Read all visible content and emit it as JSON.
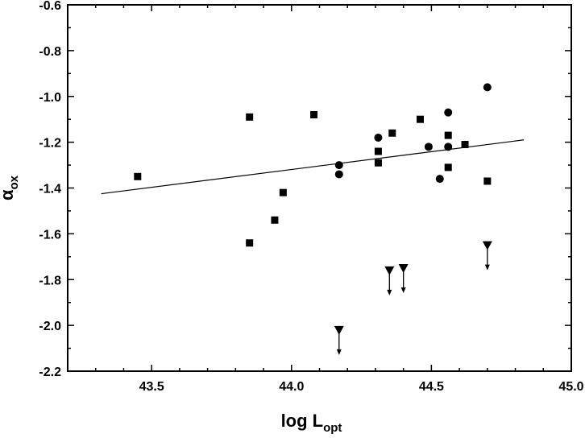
{
  "chart_data": {
    "type": "scatter",
    "title": "",
    "xlabel": {
      "main": "log L",
      "sub": "opt"
    },
    "ylabel": {
      "main": "α",
      "sub": "ox"
    },
    "xlim": [
      43.2,
      45.0
    ],
    "ylim": [
      -2.2,
      -0.6
    ],
    "x_ticks": [
      43.5,
      44.0,
      44.5,
      45.0
    ],
    "x_tick_labels": [
      "43.5",
      "44.0",
      "44.5",
      "45.0"
    ],
    "y_ticks": [
      -0.6,
      -0.8,
      -1.0,
      -1.2,
      -1.4,
      -1.6,
      -1.8,
      -2.0,
      -2.2
    ],
    "y_tick_labels": [
      "-0.6",
      "-0.8",
      "-1.0",
      "-1.2",
      "-1.4",
      "-1.6",
      "-1.8",
      "-2.0",
      "-2.2"
    ],
    "grid": false,
    "legend": "none",
    "series": [
      {
        "marker": "square",
        "points": [
          [
            43.45,
            -1.35
          ],
          [
            43.85,
            -1.09
          ],
          [
            43.85,
            -1.64
          ],
          [
            43.94,
            -1.54
          ],
          [
            43.97,
            -1.42
          ],
          [
            44.08,
            -1.08
          ],
          [
            44.31,
            -1.24
          ],
          [
            44.31,
            -1.29
          ],
          [
            44.36,
            -1.16
          ],
          [
            44.46,
            -1.1
          ],
          [
            44.56,
            -1.17
          ],
          [
            44.56,
            -1.31
          ],
          [
            44.62,
            -1.21
          ],
          [
            44.7,
            -1.37
          ]
        ]
      },
      {
        "marker": "circle",
        "points": [
          [
            44.17,
            -1.3
          ],
          [
            44.17,
            -1.34
          ],
          [
            44.31,
            -1.18
          ],
          [
            44.49,
            -1.22
          ],
          [
            44.53,
            -1.36
          ],
          [
            44.56,
            -1.07
          ],
          [
            44.56,
            -1.22
          ],
          [
            44.7,
            -0.96
          ]
        ]
      },
      {
        "marker": "upper-limit",
        "points": [
          [
            44.17,
            -2.02
          ],
          [
            44.35,
            -1.76
          ],
          [
            44.4,
            -1.75
          ],
          [
            44.7,
            -1.65
          ]
        ]
      }
    ],
    "fit_line": {
      "x": [
        43.32,
        44.83
      ],
      "y": [
        -1.425,
        -1.19
      ]
    }
  }
}
